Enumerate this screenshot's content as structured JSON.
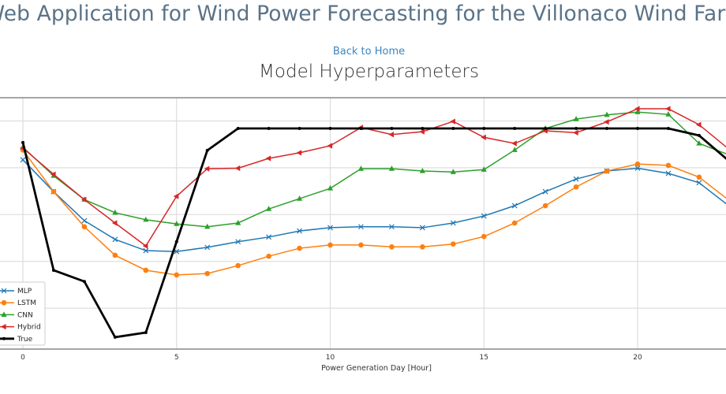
{
  "header": {
    "title": "Web Application for Wind Power Forecasting for the Villonaco Wind Farm",
    "back_link": "Back to Home",
    "page_heading": "Model Hyperparameters"
  },
  "chart_data": {
    "type": "line",
    "title": "",
    "xlabel": "Power Generation Day [Hour]",
    "ylabel": "",
    "x": [
      0,
      1,
      2,
      3,
      4,
      5,
      6,
      7,
      8,
      9,
      10,
      11,
      12,
      13,
      14,
      15,
      16,
      17,
      18,
      19,
      20,
      21,
      22,
      23
    ],
    "x_ticks": [
      0,
      5,
      10,
      15,
      20
    ],
    "xlim": [
      -0.7,
      22.85
    ],
    "ylim": [
      0.13,
      5.5
    ],
    "y_gridlines": [
      1,
      2,
      3,
      4,
      5
    ],
    "y_units_note": "relative units (no y tick labels visible)",
    "grid": true,
    "legend_placement": "bottom-left",
    "series": [
      {
        "name": "MLP",
        "color": "#1f77b4",
        "marker": "x",
        "values": [
          4.17,
          3.49,
          2.87,
          2.47,
          2.23,
          2.21,
          2.3,
          2.42,
          2.52,
          2.65,
          2.72,
          2.74,
          2.74,
          2.72,
          2.82,
          2.97,
          3.19,
          3.49,
          3.76,
          3.93,
          3.99,
          3.88,
          3.68,
          3.17
        ]
      },
      {
        "name": "LSTM",
        "color": "#ff7f0e",
        "marker": "circle",
        "values": [
          4.38,
          3.49,
          2.74,
          2.13,
          1.81,
          1.71,
          1.74,
          1.91,
          2.11,
          2.28,
          2.35,
          2.35,
          2.31,
          2.31,
          2.37,
          2.53,
          2.82,
          3.19,
          3.59,
          3.93,
          4.08,
          4.05,
          3.8,
          3.29
        ]
      },
      {
        "name": "CNN",
        "color": "#2ca02c",
        "marker": "triangle-up",
        "values": [
          4.44,
          3.83,
          3.32,
          3.04,
          2.89,
          2.8,
          2.74,
          2.82,
          3.12,
          3.34,
          3.56,
          3.98,
          3.98,
          3.93,
          3.91,
          3.96,
          4.38,
          4.84,
          5.04,
          5.13,
          5.19,
          5.14,
          4.52,
          4.27
        ]
      },
      {
        "name": "Hybrid",
        "color": "#d62728",
        "marker": "triangle-left",
        "values": [
          4.42,
          3.86,
          3.32,
          2.82,
          2.33,
          3.39,
          3.98,
          3.99,
          4.2,
          4.32,
          4.47,
          4.86,
          4.71,
          4.77,
          4.99,
          4.65,
          4.52,
          4.79,
          4.75,
          4.98,
          5.26,
          5.26,
          4.92,
          4.38
        ]
      },
      {
        "name": "True",
        "color": "#000000",
        "marker": "dot",
        "values": [
          4.54,
          1.81,
          1.57,
          0.38,
          0.48,
          2.42,
          4.37,
          4.84,
          4.84,
          4.84,
          4.84,
          4.84,
          4.84,
          4.84,
          4.84,
          4.84,
          4.84,
          4.84,
          4.84,
          4.84,
          4.84,
          4.84,
          4.69,
          4.13
        ]
      }
    ]
  }
}
